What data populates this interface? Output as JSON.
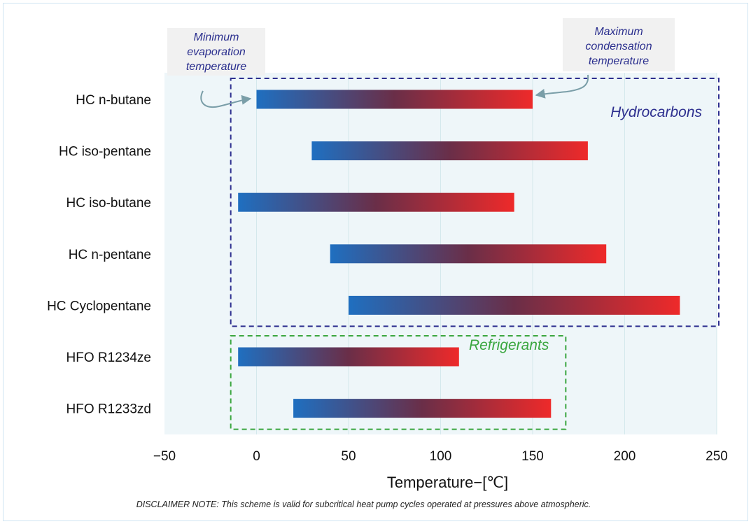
{
  "chart_data": {
    "type": "bar",
    "orientation": "horizontal",
    "bar_style": "range",
    "categories": [
      "HC n-butane",
      "HC iso-pentane",
      "HC iso-butane",
      "HC n-pentane",
      "HC Cyclopentane",
      "HFO R1234ze",
      "HFO R1233zd"
    ],
    "series": [
      {
        "values": [
          [
            0,
            150
          ],
          [
            30,
            180
          ],
          [
            -10,
            140
          ],
          [
            40,
            190
          ],
          [
            50,
            230
          ],
          [
            -10,
            110
          ],
          [
            20,
            160
          ]
        ]
      }
    ],
    "xlabel": "Temperature−[℃]",
    "ylabel": "",
    "xlim": [
      -50,
      250
    ],
    "xticks": [
      -50,
      0,
      50,
      100,
      150,
      200,
      250
    ],
    "xtick_labels": [
      "−50",
      "0",
      "50",
      "100",
      "150",
      "200",
      "250"
    ],
    "grid": true,
    "colors": {
      "low": "#1f6fc0",
      "mid": "#6a2e48",
      "high": "#ee2a2a",
      "plot_bg": "#eef6f9",
      "grid": "#d4e8ec"
    },
    "groups": [
      {
        "label": "Hydrocarbons",
        "color": "#2d2f8f",
        "categories": [
          0,
          4
        ],
        "x_range": [
          -14,
          250
        ]
      },
      {
        "label": "Refrigerants",
        "color": "#3aa63f",
        "categories": [
          5,
          6
        ],
        "x_range": [
          -14,
          168
        ]
      }
    ],
    "annotations": [
      {
        "lines": [
          "Minimum",
          "evaporation",
          "temperature"
        ],
        "points_to": {
          "category": 0,
          "x": 0
        }
      },
      {
        "lines": [
          "Maximum",
          "condensation",
          "temperature"
        ],
        "points_to": {
          "category": 0,
          "x": 150
        }
      }
    ]
  },
  "disclaimer": "DISCLAIMER NOTE: This scheme is valid for subcritical heat pump cycles operated at pressures above atmospheric."
}
